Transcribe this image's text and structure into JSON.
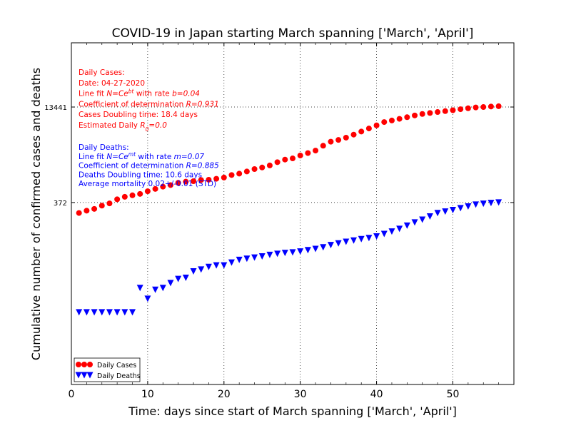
{
  "chart_data": {
    "type": "scatter",
    "title": "COVID-19 in Japan starting March spanning ['March', 'April']",
    "xlabel": "Time: days since start of March spanning ['March', 'April']",
    "ylabel": "Cumulative number of confirmed cases and deaths",
    "xlim": [
      0,
      58
    ],
    "ylim": [
      0.4,
      150000
    ],
    "yscale": "log",
    "grid": true,
    "legend_position": "lower-left",
    "x_ticks": [
      0,
      10,
      20,
      30,
      40,
      50
    ],
    "y_ticks": [
      {
        "value": 372,
        "label": "372"
      },
      {
        "value": 13441,
        "label": "13441"
      }
    ],
    "series": [
      {
        "name": "Daily Cases",
        "color": "#ff0000",
        "marker": "circle",
        "x": [
          1,
          2,
          3,
          4,
          5,
          6,
          7,
          8,
          9,
          10,
          11,
          12,
          13,
          14,
          15,
          16,
          17,
          18,
          19,
          20,
          21,
          22,
          23,
          24,
          25,
          26,
          27,
          28,
          29,
          30,
          31,
          32,
          33,
          34,
          35,
          36,
          37,
          38,
          39,
          40,
          41,
          42,
          43,
          44,
          45,
          46,
          47,
          48,
          49,
          50,
          51,
          52,
          53,
          54,
          55,
          56
        ],
        "values": [
          251,
          274,
          293,
          331,
          360,
          420,
          461,
          488,
          514,
          568,
          620,
          675,
          716,
          780,
          814,
          829,
          867,
          876,
          908,
          950,
          1046,
          1101,
          1193,
          1307,
          1387,
          1499,
          1693,
          1866,
          1953,
          2178,
          2384,
          2617,
          3139,
          3654,
          3906,
          4257,
          4768,
          5347,
          6005,
          6748,
          7645,
          8100,
          8626,
          9167,
          9795,
          10361,
          10751,
          11135,
          11512,
          11919,
          12388,
          12829,
          13231,
          13441,
          13685,
          13852
        ]
      },
      {
        "name": "Daily Deaths",
        "color": "#0000ff",
        "marker": "triangle-down",
        "x": [
          1,
          2,
          3,
          4,
          5,
          6,
          7,
          8,
          9,
          10,
          11,
          12,
          13,
          14,
          15,
          16,
          17,
          18,
          19,
          20,
          21,
          22,
          23,
          24,
          25,
          26,
          27,
          28,
          29,
          30,
          31,
          32,
          33,
          34,
          35,
          36,
          37,
          38,
          39,
          40,
          41,
          42,
          43,
          44,
          45,
          46,
          47,
          48,
          49,
          50,
          51,
          52,
          53,
          54,
          55,
          56
        ],
        "values": [
          6,
          6,
          6,
          6,
          6,
          6,
          6,
          6,
          15,
          10,
          14,
          15,
          18,
          21,
          22,
          28,
          30,
          33,
          35,
          35,
          39,
          43,
          45,
          47,
          49,
          52,
          54,
          56,
          57,
          59,
          62,
          65,
          69,
          75,
          80,
          85,
          89,
          94,
          98,
          104,
          114,
          125,
          138,
          156,
          176,
          195,
          220,
          250,
          265,
          280,
          300,
          320,
          343,
          355,
          365,
          372
        ]
      }
    ],
    "annotations": {
      "cases": {
        "color": "#ff0000",
        "lines": [
          "Daily Cases:",
          "Date: 04-27-2020",
          "Line fit N=Ce^{bt} with rate b=0.04",
          "Coefficient of determination R=0.931",
          "Cases Doubling time: 18.4 days",
          "Estimated Daily R_0=0.0"
        ]
      },
      "deaths": {
        "color": "#0000ff",
        "lines": [
          "Daily Deaths:",
          "Line fit N=Ce^{mt} with rate m=0.07",
          "Coefficient of determination R=0.885",
          "Deaths Doubling time: 10.6 days",
          "Average mortality 0.02+/-0.01 (STD)"
        ]
      }
    }
  }
}
